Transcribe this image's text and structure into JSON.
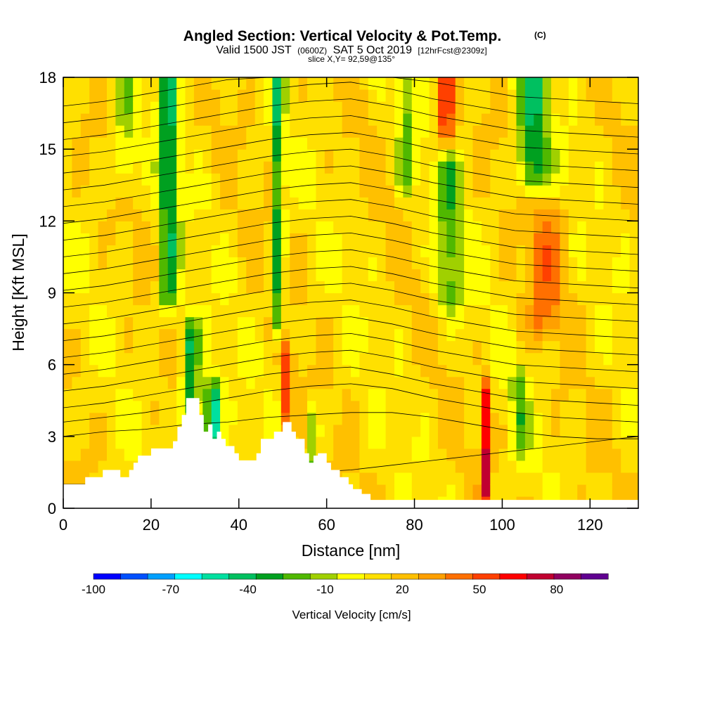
{
  "chart_data": {
    "type": "heatmap",
    "title": "Angled Section: Vertical Velocity & Pot.Temp.",
    "title_mark": "(C)",
    "subtitle": {
      "lead": "Valid 1500 JST",
      "utc": "(0600Z)",
      "date": "SAT 5 Oct 2019",
      "fcst": "[12hrFcst@2309z]"
    },
    "slice_text": "slice X,Y= 92,59@135°",
    "xlabel": "Distance [nm]",
    "ylabel": "Height [Kft MSL]",
    "xlim": [
      0,
      131
    ],
    "ylim": [
      0,
      18
    ],
    "x_ticks": [
      0,
      20,
      40,
      60,
      80,
      100,
      120
    ],
    "y_ticks": [
      0,
      3,
      6,
      9,
      12,
      15,
      18
    ],
    "colorbar": {
      "label": "Vertical Velocity [cm/s]",
      "levels": [
        -100,
        -90,
        -80,
        -70,
        -60,
        -50,
        -40,
        -30,
        -20,
        -10,
        0,
        10,
        20,
        30,
        40,
        50,
        60,
        70,
        80,
        90
      ],
      "colors": [
        "#0000ff",
        "#0050ff",
        "#00a0ff",
        "#00ffff",
        "#00e0a0",
        "#00c060",
        "#00a020",
        "#50b800",
        "#a0d000",
        "#ffff00",
        "#ffe000",
        "#ffc000",
        "#ffa000",
        "#ff7000",
        "#ff4000",
        "#ff0000",
        "#c00030",
        "#900060",
        "#600090"
      ],
      "tick_labels": [
        -100,
        -70,
        -40,
        -10,
        20,
        50,
        80
      ]
    },
    "terrain": [
      [
        0,
        1
      ],
      [
        5,
        1
      ],
      [
        5,
        1.3
      ],
      [
        9,
        1.3
      ],
      [
        9,
        1.6
      ],
      [
        13,
        1.6
      ],
      [
        13,
        1.3
      ],
      [
        15,
        1.3
      ],
      [
        15,
        1.6
      ],
      [
        16,
        1.6
      ],
      [
        16,
        1.9
      ],
      [
        17,
        1.9
      ],
      [
        17,
        2.2
      ],
      [
        20,
        2.2
      ],
      [
        20,
        2.5
      ],
      [
        25,
        2.5
      ],
      [
        25,
        2.8
      ],
      [
        26,
        2.8
      ],
      [
        26,
        3.4
      ],
      [
        27,
        3.4
      ],
      [
        27,
        3.9
      ],
      [
        28,
        3.9
      ],
      [
        28,
        4.6
      ],
      [
        31,
        4.6
      ],
      [
        31,
        3.9
      ],
      [
        32,
        3.9
      ],
      [
        32,
        3.2
      ],
      [
        33,
        3.2
      ],
      [
        33,
        3.5
      ],
      [
        34,
        3.5
      ],
      [
        34,
        2.9
      ],
      [
        35,
        2.9
      ],
      [
        35,
        3.2
      ],
      [
        36,
        3.2
      ],
      [
        36,
        2.9
      ],
      [
        37,
        2.9
      ],
      [
        37,
        2.6
      ],
      [
        39,
        2.6
      ],
      [
        39,
        2.3
      ],
      [
        40,
        2.3
      ],
      [
        40,
        2
      ],
      [
        44,
        2
      ],
      [
        44,
        2.3
      ],
      [
        45,
        2.3
      ],
      [
        45,
        2.9
      ],
      [
        48,
        2.9
      ],
      [
        48,
        3.2
      ],
      [
        50,
        3.2
      ],
      [
        50,
        3.6
      ],
      [
        52,
        3.6
      ],
      [
        52,
        3.2
      ],
      [
        53,
        3.2
      ],
      [
        53,
        2.9
      ],
      [
        55,
        2.9
      ],
      [
        55,
        2.3
      ],
      [
        56,
        2.3
      ],
      [
        56,
        1.9
      ],
      [
        57,
        1.9
      ],
      [
        57,
        2.2
      ],
      [
        58,
        2.2
      ],
      [
        58,
        2.3
      ],
      [
        60,
        2.3
      ],
      [
        60,
        1.9
      ],
      [
        61,
        1.9
      ],
      [
        61,
        1.6
      ],
      [
        63,
        1.6
      ],
      [
        63,
        1.3
      ],
      [
        65,
        1.3
      ],
      [
        65,
        1
      ],
      [
        66,
        1
      ],
      [
        66,
        0.8
      ],
      [
        68,
        0.8
      ],
      [
        68,
        0.6
      ],
      [
        70,
        0.6
      ],
      [
        70,
        0.35
      ],
      [
        131,
        0.35
      ]
    ],
    "theta_contours": [
      {
        "label": "",
        "heights": [
          1.0,
          1.0,
          1.1,
          1.1,
          1.2,
          1.3,
          1.5,
          1.6,
          1.8,
          2.0,
          2.2,
          2.4,
          2.6,
          2.8,
          3.0
        ]
      },
      {
        "label": "",
        "heights": [
          3.0,
          3.2,
          3.3,
          3.5,
          3.6,
          3.8,
          3.9,
          4.0,
          4.0,
          3.8,
          3.5,
          3.2,
          3.0,
          2.9,
          2.9
        ]
      },
      {
        "label": "",
        "heights": [
          3.6,
          3.8,
          4.0,
          4.3,
          4.6,
          4.9,
          5.1,
          5.2,
          5.0,
          4.6,
          4.3,
          4.0,
          3.8,
          3.7,
          3.6
        ]
      },
      {
        "label": "",
        "heights": [
          4.2,
          4.4,
          4.7,
          5.0,
          5.3,
          5.6,
          5.8,
          5.9,
          5.6,
          5.2,
          4.9,
          4.6,
          4.5,
          4.4,
          4.3
        ]
      },
      {
        "label": "",
        "heights": [
          4.9,
          5.1,
          5.4,
          5.7,
          6.0,
          6.3,
          6.5,
          6.6,
          6.3,
          5.9,
          5.6,
          5.3,
          5.2,
          5.1,
          5.0
        ]
      },
      {
        "label": "",
        "heights": [
          5.6,
          5.8,
          6.1,
          6.4,
          6.7,
          7.0,
          7.2,
          7.3,
          7.0,
          6.6,
          6.3,
          6.0,
          5.9,
          5.8,
          5.7
        ]
      },
      {
        "label": "",
        "heights": [
          6.3,
          6.5,
          6.8,
          7.1,
          7.4,
          7.7,
          7.9,
          8.0,
          7.7,
          7.3,
          7.0,
          6.7,
          6.6,
          6.5,
          6.4
        ]
      },
      {
        "label": "",
        "heights": [
          7.0,
          7.2,
          7.5,
          7.8,
          8.1,
          8.4,
          8.6,
          8.7,
          8.4,
          8.0,
          7.7,
          7.4,
          7.3,
          7.2,
          7.1
        ]
      },
      {
        "label": "",
        "heights": [
          7.7,
          7.9,
          8.2,
          8.5,
          8.8,
          9.1,
          9.3,
          9.4,
          9.1,
          8.7,
          8.4,
          8.1,
          8.0,
          7.9,
          7.8
        ]
      },
      {
        "label": "",
        "heights": [
          8.4,
          8.6,
          8.9,
          9.2,
          9.5,
          9.8,
          10.0,
          10.1,
          9.8,
          9.4,
          9.1,
          8.8,
          8.7,
          8.6,
          8.5
        ]
      },
      {
        "label": "",
        "heights": [
          9.1,
          9.3,
          9.6,
          9.9,
          10.2,
          10.5,
          10.7,
          10.8,
          10.5,
          10.1,
          9.8,
          9.5,
          9.4,
          9.3,
          9.2
        ]
      },
      {
        "label": "",
        "heights": [
          9.8,
          10.0,
          10.3,
          10.6,
          10.9,
          11.2,
          11.4,
          11.5,
          11.2,
          10.8,
          10.5,
          10.2,
          10.1,
          10.0,
          9.9
        ]
      },
      {
        "label": "",
        "heights": [
          10.5,
          10.7,
          11.0,
          11.3,
          11.6,
          11.9,
          12.1,
          12.2,
          11.9,
          11.5,
          11.2,
          10.9,
          10.8,
          10.7,
          10.6
        ]
      },
      {
        "label": "",
        "heights": [
          11.2,
          11.4,
          11.7,
          12.0,
          12.3,
          12.6,
          12.8,
          12.9,
          12.6,
          12.2,
          11.9,
          11.6,
          11.5,
          11.4,
          11.3
        ]
      },
      {
        "label": "",
        "heights": [
          11.9,
          12.1,
          12.4,
          12.7,
          13.0,
          13.3,
          13.5,
          13.6,
          13.3,
          12.9,
          12.6,
          12.3,
          12.2,
          12.1,
          12.0
        ]
      },
      {
        "label": "",
        "heights": [
          12.6,
          12.8,
          13.1,
          13.4,
          13.7,
          14.0,
          14.2,
          14.3,
          14.0,
          13.6,
          13.3,
          13.0,
          12.9,
          12.8,
          12.7
        ]
      },
      {
        "label": "",
        "heights": [
          13.3,
          13.5,
          13.8,
          14.1,
          14.4,
          14.7,
          14.9,
          15.0,
          14.7,
          14.3,
          14.0,
          13.7,
          13.6,
          13.5,
          13.4
        ]
      },
      {
        "label": "",
        "heights": [
          14.0,
          14.2,
          14.5,
          14.8,
          15.1,
          15.4,
          15.6,
          15.7,
          15.4,
          15.0,
          14.7,
          14.4,
          14.3,
          14.2,
          14.1
        ]
      },
      {
        "label": "",
        "heights": [
          14.7,
          14.9,
          15.2,
          15.5,
          15.8,
          16.1,
          16.3,
          16.4,
          16.1,
          15.7,
          15.4,
          15.1,
          15.0,
          14.9,
          14.8
        ]
      },
      {
        "label": "",
        "heights": [
          15.4,
          15.6,
          15.9,
          16.2,
          16.5,
          16.8,
          17.0,
          17.1,
          16.8,
          16.4,
          16.1,
          15.8,
          15.7,
          15.6,
          15.5
        ]
      },
      {
        "label": "",
        "heights": [
          16.1,
          16.3,
          16.6,
          16.9,
          17.2,
          17.5,
          17.7,
          17.8,
          17.5,
          17.1,
          16.8,
          16.5,
          16.4,
          16.3,
          16.2
        ]
      },
      {
        "label": "",
        "heights": [
          16.8,
          17.0,
          17.3,
          17.6,
          17.9,
          18.0,
          18.0,
          18.0,
          18.0,
          17.8,
          17.5,
          17.2,
          17.1,
          17.0,
          16.9
        ]
      }
    ],
    "contour_x": [
      0,
      9.4,
      18.7,
      28.1,
      37.4,
      46.8,
      56.1,
      65.5,
      74.9,
      84.2,
      93.6,
      102.9,
      112.3,
      121.6,
      131
    ],
    "velocity_features": [
      {
        "x": 24,
        "sigma_x": 2.2,
        "z": [
          9,
          18
        ],
        "w": -45
      },
      {
        "x": 29,
        "sigma_x": 2.0,
        "z": [
          4.5,
          7
        ],
        "w": -50
      },
      {
        "x": 34,
        "sigma_x": 1.8,
        "z": [
          3,
          4.5
        ],
        "w": -70
      },
      {
        "x": 49,
        "sigma_x": 1.2,
        "z": [
          8,
          18
        ],
        "w": -45
      },
      {
        "x": 51,
        "sigma_x": 1.0,
        "z": [
          4,
          6
        ],
        "w": 45
      },
      {
        "x": 88,
        "sigma_x": 3.0,
        "z": [
          9,
          14
        ],
        "w": -30
      },
      {
        "x": 96,
        "sigma_x": 1.0,
        "z": [
          1,
          4.5
        ],
        "w": 55
      },
      {
        "x": 107,
        "sigma_x": 3.5,
        "z": [
          14,
          18
        ],
        "w": -45
      },
      {
        "x": 110,
        "sigma_x": 4.0,
        "z": [
          8,
          12
        ],
        "w": 25
      },
      {
        "x": 87,
        "sigma_x": 2.0,
        "z": [
          16,
          18
        ],
        "w": 45
      },
      {
        "x": 57,
        "sigma_x": 1.2,
        "z": [
          1.5,
          3.5
        ],
        "w": -30
      },
      {
        "x": 104,
        "sigma_x": 2.0,
        "z": [
          3,
          5
        ],
        "w": -25
      },
      {
        "x": 14,
        "sigma_x": 3.0,
        "z": [
          14,
          18
        ],
        "w": -20
      },
      {
        "x": 78,
        "sigma_x": 2.0,
        "z": [
          14,
          18
        ],
        "w": -25
      }
    ]
  }
}
